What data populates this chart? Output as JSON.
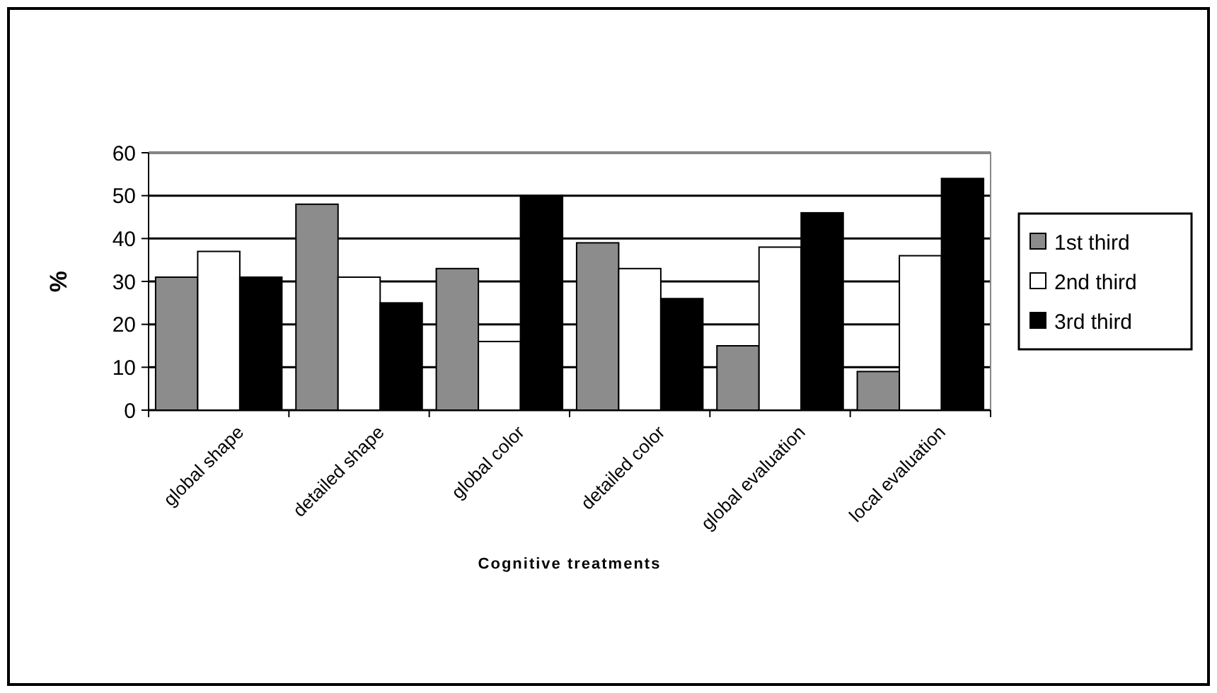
{
  "chart_data": {
    "type": "bar",
    "xlabel": "Cognitive treatments",
    "ylabel": "%",
    "categories": [
      "global shape",
      "detailed shape",
      "global color",
      "detailed color",
      "global evaluation",
      "local evaluation"
    ],
    "series": [
      {
        "name": "1st third",
        "color": "#8c8c8c",
        "values": [
          31,
          48,
          33,
          39,
          15,
          9
        ]
      },
      {
        "name": "2nd third",
        "color": "#ffffff",
        "values": [
          37,
          31,
          16,
          33,
          38,
          36
        ]
      },
      {
        "name": "3rd third",
        "color": "#000000",
        "values": [
          31,
          25,
          50,
          26,
          46,
          54
        ]
      }
    ],
    "ylim": [
      0,
      60
    ],
    "yticks": [
      0,
      10,
      20,
      30,
      40,
      50,
      60
    ],
    "grid": "y",
    "legend": "right"
  }
}
